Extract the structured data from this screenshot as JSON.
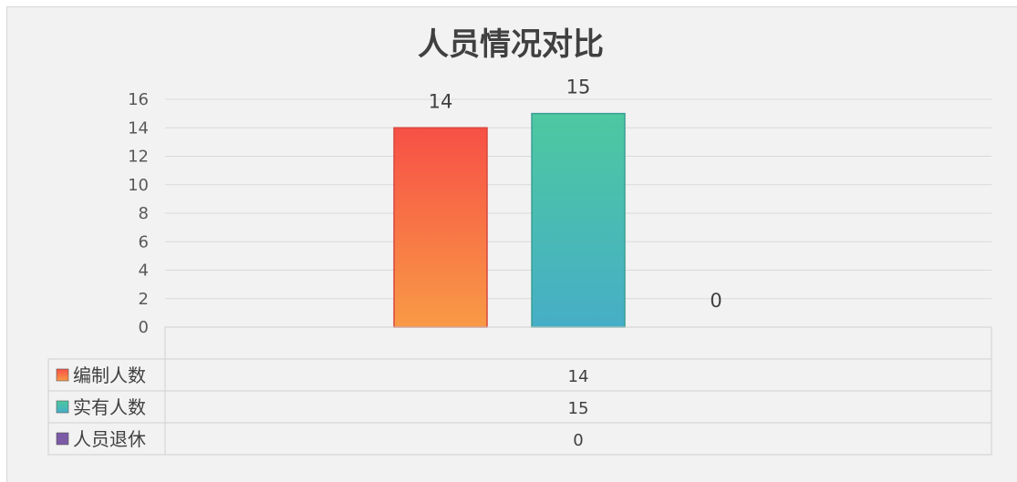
{
  "chart_data": {
    "type": "bar",
    "title": "人员情况对比",
    "categories": [
      ""
    ],
    "series": [
      {
        "name": "编制人数",
        "values": [
          14
        ],
        "colors": [
          "#f75046",
          "#f89a46"
        ]
      },
      {
        "name": "实有人数",
        "values": [
          15
        ],
        "colors": [
          "#4dc8a0",
          "#46aec6"
        ]
      },
      {
        "name": "人员退休",
        "values": [
          0
        ],
        "colors": [
          "#7b5aa6",
          "#7b5aa6"
        ]
      }
    ],
    "xlabel": "",
    "ylabel": "",
    "ylim": [
      0,
      16
    ],
    "yticks": [
      "0",
      "2",
      "4",
      "6",
      "8",
      "10",
      "12",
      "14",
      "16"
    ],
    "grid": true,
    "legend": "data-table"
  }
}
